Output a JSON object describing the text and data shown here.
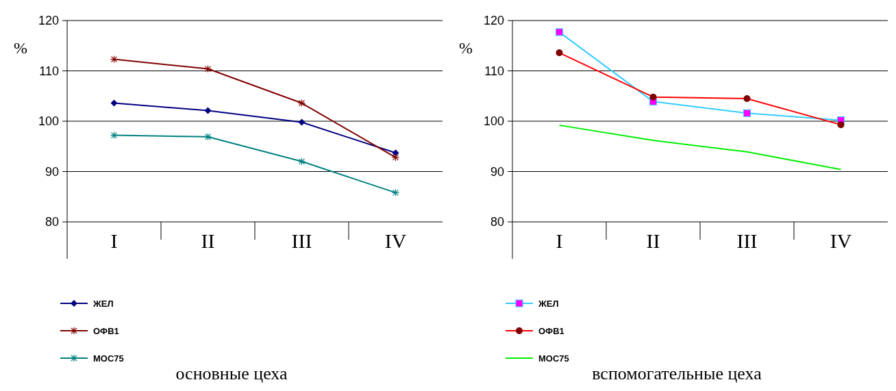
{
  "chart_data": [
    {
      "type": "line",
      "title": "основные цеха",
      "ylabel": "%",
      "categories": [
        "I",
        "II",
        "III",
        "IV"
      ],
      "ylim": [
        80,
        120
      ],
      "yticks": [
        80,
        90,
        100,
        110,
        120
      ],
      "grid": "y",
      "legend": "bottom left",
      "series": [
        {
          "name": "ЖЕЛ",
          "color": "#000080",
          "marker": "diamond",
          "values": [
            103.6,
            102.1,
            99.8,
            93.7
          ]
        },
        {
          "name": "ОФВ1",
          "color": "#800000",
          "marker": "cross",
          "values": [
            112.3,
            110.4,
            103.6,
            92.8
          ]
        },
        {
          "name": "МОС75",
          "color": "#008080",
          "marker": "cross",
          "values": [
            97.2,
            96.9,
            92.0,
            85.8
          ]
        }
      ]
    },
    {
      "type": "line",
      "title": "вспомогательные цеха",
      "ylabel": "%",
      "categories": [
        "I",
        "II",
        "III",
        "IV"
      ],
      "ylim": [
        80,
        120
      ],
      "yticks": [
        80,
        90,
        100,
        110,
        120
      ],
      "grid": "y",
      "legend": "bottom left",
      "series": [
        {
          "name": "ЖЕЛ",
          "color": "#33ccff",
          "marker": "square",
          "values": [
            117.7,
            103.9,
            101.6,
            100.2
          ]
        },
        {
          "name": "ОФВ1",
          "color": "#ff0000",
          "marker": "circle",
          "values": [
            113.6,
            104.8,
            104.5,
            99.3
          ]
        },
        {
          "name": "МОС75",
          "color": "#00ee00",
          "marker": "none",
          "values": [
            99.2,
            96.2,
            93.9,
            90.4
          ]
        }
      ]
    }
  ]
}
